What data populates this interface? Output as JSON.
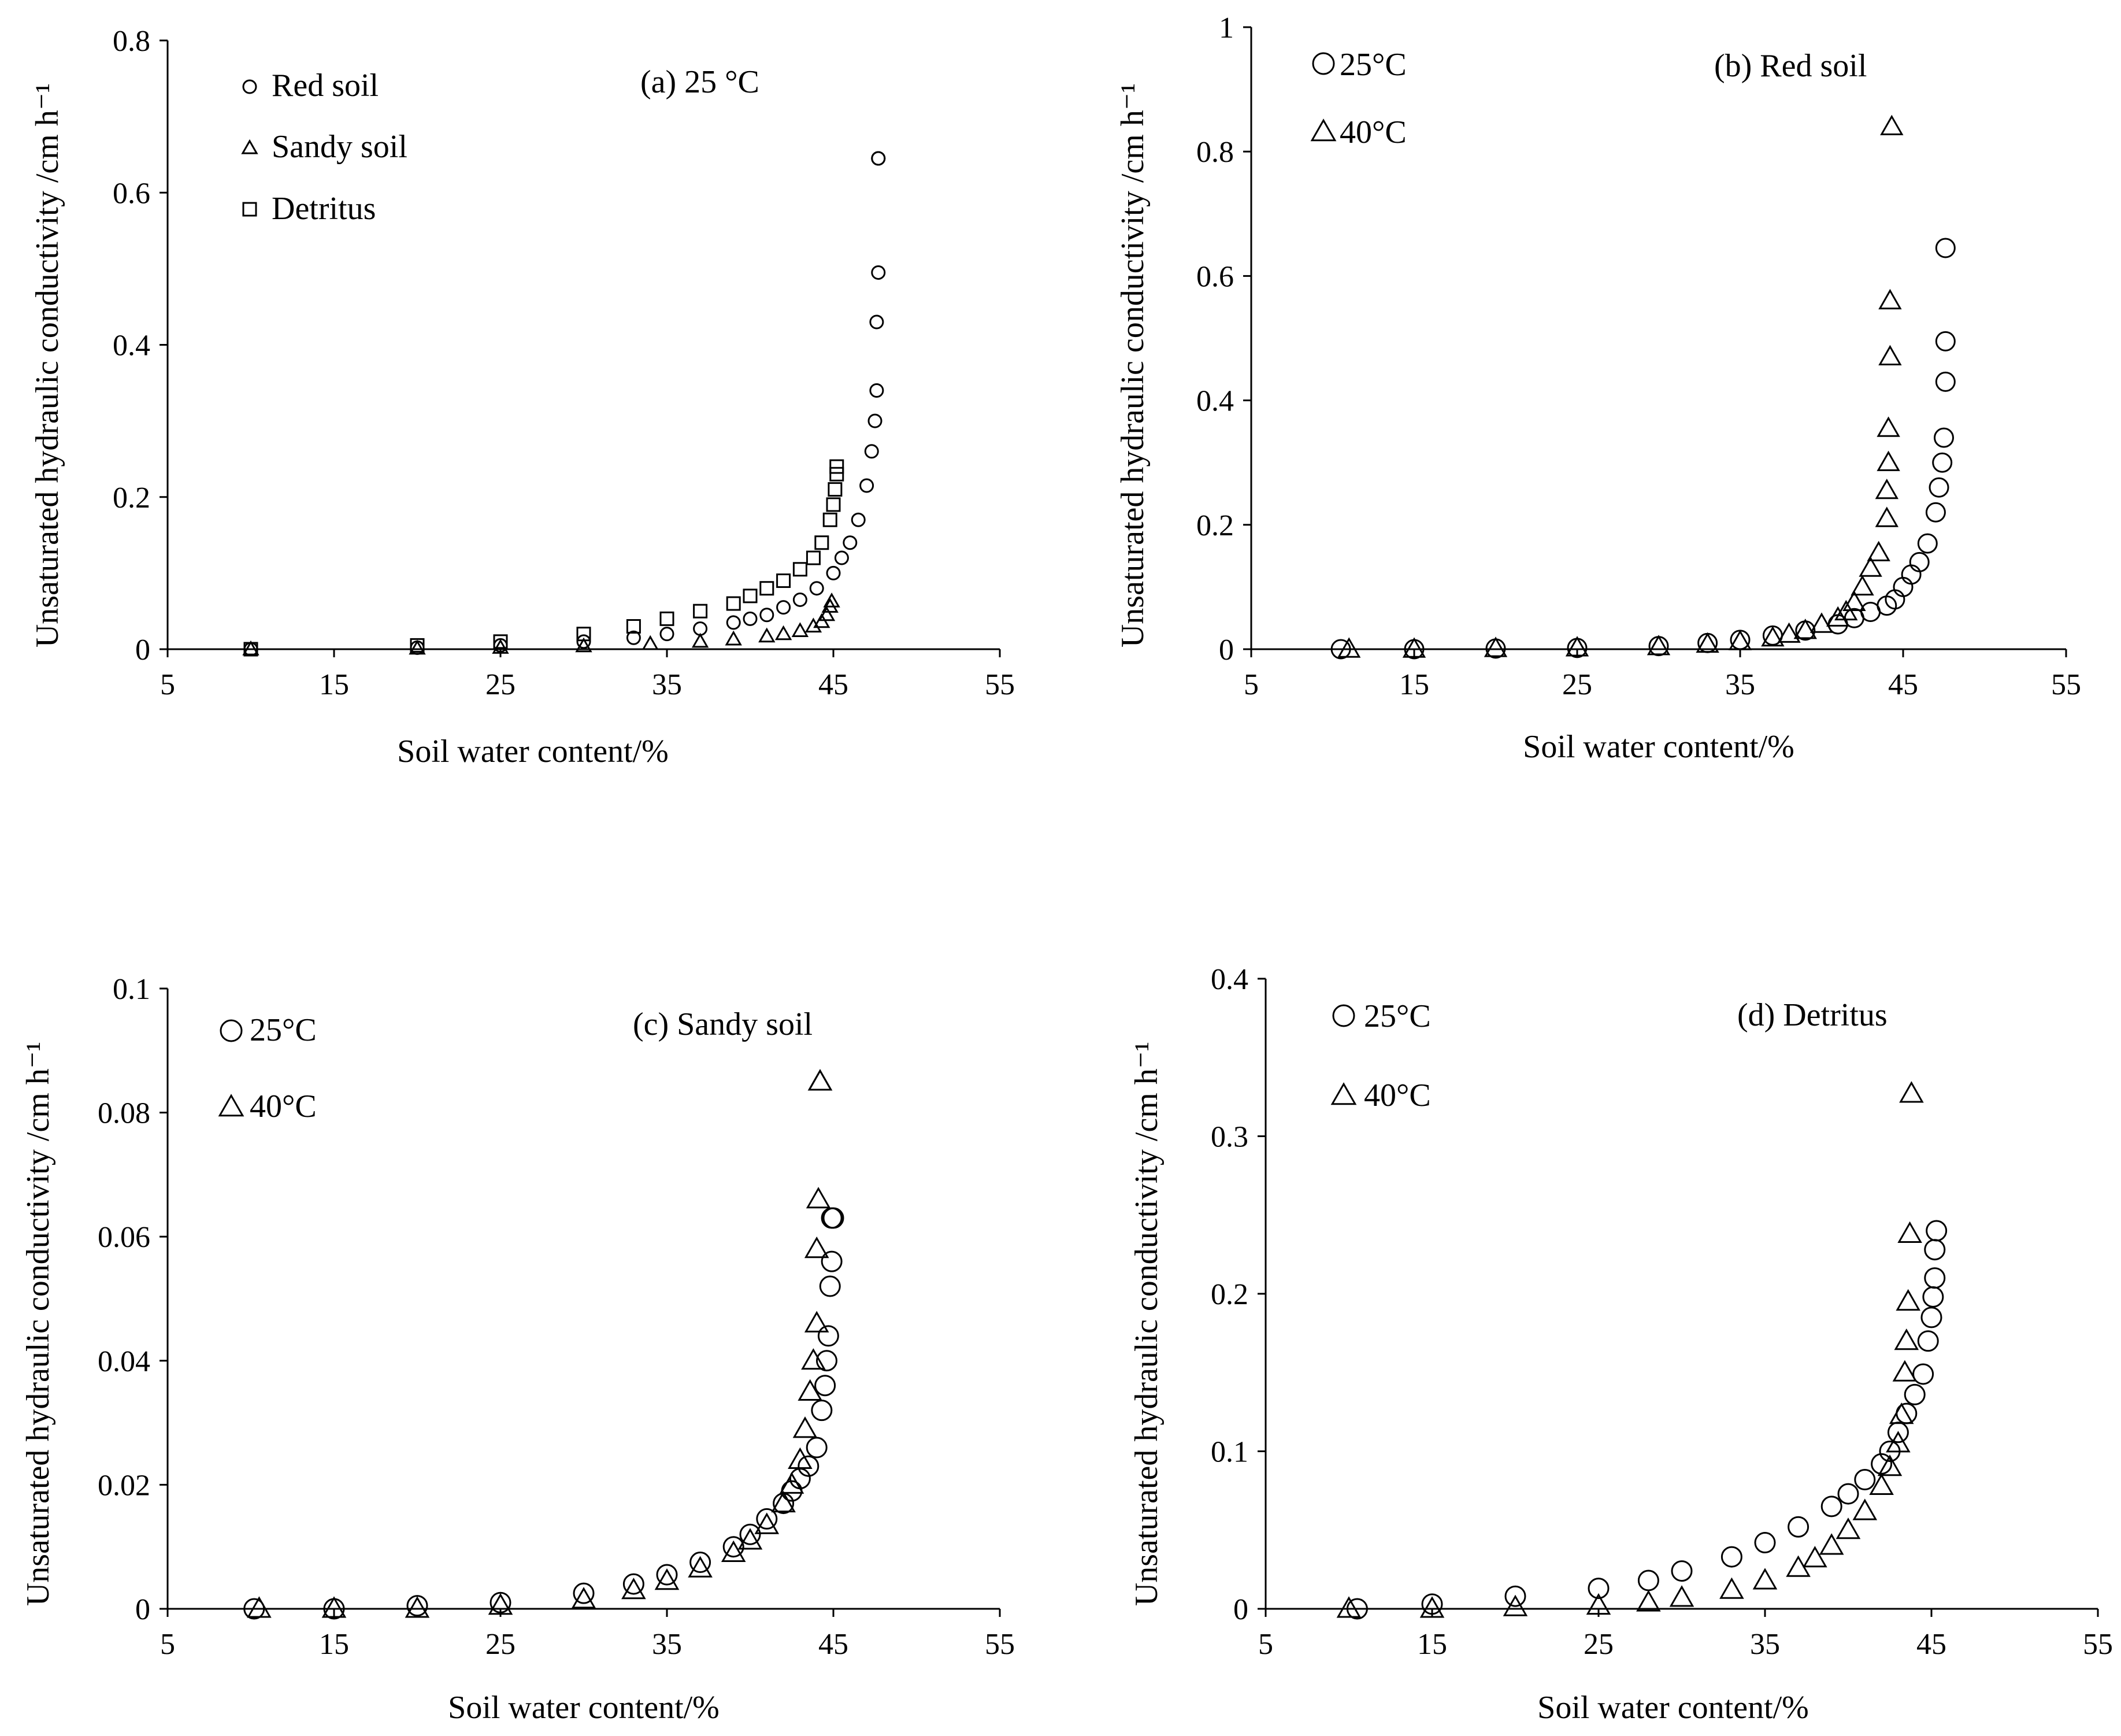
{
  "chart_data": [
    {
      "type": "scatter",
      "panel": "a",
      "title": "(a) 25 °C",
      "xlabel": "Soil water content/%",
      "ylabel": "Unsaturated hydraulic conductivity /cm h⁻¹",
      "xlim": [
        5,
        55
      ],
      "ylim": [
        0,
        0.8
      ],
      "x_ticks": [
        "5",
        "15",
        "25",
        "35",
        "45",
        "55"
      ],
      "y_ticks": [
        "0",
        "0.2",
        "0.4",
        "0.6",
        "0.8"
      ],
      "legend_position": "top-left",
      "series": [
        {
          "name": "Red soil",
          "marker": "circle",
          "x": [
            10,
            20,
            25,
            30,
            33,
            35,
            37,
            39,
            40,
            41,
            42,
            43,
            44,
            45,
            45.5,
            46,
            46.5,
            47,
            47.3,
            47.5,
            47.6,
            47.6,
            47.7,
            47.7,
            47.7
          ],
          "y": [
            0,
            0.002,
            0.005,
            0.01,
            0.015,
            0.02,
            0.027,
            0.035,
            0.04,
            0.045,
            0.055,
            0.065,
            0.08,
            0.1,
            0.12,
            0.14,
            0.17,
            0.215,
            0.26,
            0.3,
            0.34,
            0.43,
            0.495,
            0.645,
            0.645
          ]
        },
        {
          "name": "Sandy soil",
          "marker": "triangle",
          "x": [
            10,
            20,
            25,
            30,
            34,
            37,
            39,
            41,
            42,
            43,
            43.8,
            44.3,
            44.6,
            44.8,
            44.9
          ],
          "y": [
            0,
            0.001,
            0.002,
            0.004,
            0.007,
            0.01,
            0.013,
            0.017,
            0.02,
            0.024,
            0.03,
            0.036,
            0.045,
            0.056,
            0.063
          ]
        },
        {
          "name": "Detritus",
          "marker": "square",
          "x": [
            10,
            20,
            25,
            30,
            33,
            35,
            37,
            39,
            40,
            41,
            42,
            43,
            43.8,
            44.3,
            44.8,
            45,
            45.1,
            45.2,
            45.2
          ],
          "y": [
            0,
            0.005,
            0.01,
            0.02,
            0.03,
            0.04,
            0.05,
            0.06,
            0.07,
            0.08,
            0.09,
            0.105,
            0.12,
            0.14,
            0.17,
            0.19,
            0.21,
            0.23,
            0.24
          ]
        }
      ]
    },
    {
      "type": "scatter",
      "panel": "b",
      "title": "(b) Red soil",
      "xlabel": "Soil water content/%",
      "ylabel": "Unsaturated hydraulic conductivity /cm h⁻¹",
      "xlim": [
        5,
        55
      ],
      "ylim": [
        0,
        1
      ],
      "x_ticks": [
        "5",
        "15",
        "25",
        "35",
        "45",
        "55"
      ],
      "y_ticks": [
        "0",
        "0.2",
        "0.4",
        "0.6",
        "0.8",
        "1"
      ],
      "legend_position": "top-left",
      "series": [
        {
          "name": "25°C",
          "marker": "circle",
          "x": [
            10.5,
            15,
            20,
            25,
            30,
            33,
            35,
            37,
            39,
            41,
            42,
            43,
            44,
            44.5,
            45,
            45.5,
            46,
            46.5,
            47,
            47.2,
            47.4,
            47.5,
            47.6,
            47.6,
            47.6
          ],
          "y": [
            0,
            0,
            0.001,
            0.002,
            0.005,
            0.01,
            0.015,
            0.022,
            0.03,
            0.04,
            0.05,
            0.06,
            0.07,
            0.08,
            0.1,
            0.12,
            0.14,
            0.17,
            0.22,
            0.26,
            0.3,
            0.34,
            0.43,
            0.495,
            0.645
          ]
        },
        {
          "name": "40°C",
          "marker": "triangle",
          "x": [
            11,
            15,
            20,
            25,
            30,
            33,
            35,
            37,
            38,
            39,
            40,
            41,
            41.5,
            42,
            42.5,
            43,
            43.5,
            44,
            44,
            44.1,
            44.1,
            44.2,
            44.2,
            44.3
          ],
          "y": [
            0,
            0,
            0.001,
            0.002,
            0.004,
            0.008,
            0.012,
            0.018,
            0.024,
            0.03,
            0.04,
            0.05,
            0.06,
            0.075,
            0.1,
            0.13,
            0.155,
            0.21,
            0.255,
            0.3,
            0.355,
            0.47,
            0.56,
            0.84
          ]
        }
      ]
    },
    {
      "type": "scatter",
      "panel": "c",
      "title": "(c) Sandy soil",
      "xlabel": "Soil water content/%",
      "ylabel": "Unsaturated hydraulic conductivity /cm h⁻¹",
      "xlim": [
        5,
        55
      ],
      "ylim": [
        0,
        0.1
      ],
      "x_ticks": [
        "5",
        "15",
        "25",
        "35",
        "45",
        "55"
      ],
      "y_ticks": [
        "0",
        "0.02",
        "0.04",
        "0.06",
        "0.08",
        "0.1"
      ],
      "legend_position": "top-left",
      "series": [
        {
          "name": "25°C",
          "marker": "circle",
          "x": [
            10.2,
            15,
            20,
            25,
            30,
            33,
            35,
            37,
            39,
            40,
            41,
            42,
            42.5,
            43,
            43.5,
            44,
            44.3,
            44.5,
            44.6,
            44.7,
            44.8,
            44.9,
            44.9,
            45
          ],
          "y": [
            0,
            0,
            0.0005,
            0.001,
            0.0025,
            0.004,
            0.0055,
            0.0075,
            0.01,
            0.012,
            0.0145,
            0.017,
            0.019,
            0.021,
            0.023,
            0.026,
            0.032,
            0.036,
            0.04,
            0.044,
            0.052,
            0.056,
            0.063,
            0.063
          ]
        },
        {
          "name": "40°C",
          "marker": "triangle",
          "x": [
            10.5,
            15,
            20,
            25,
            30,
            33,
            35,
            37,
            39,
            40,
            41,
            42,
            42.5,
            43,
            43.3,
            43.6,
            43.8,
            44,
            44,
            44.1,
            44.2,
            44.2
          ],
          "y": [
            0,
            0,
            0,
            0.0005,
            0.0015,
            0.003,
            0.0045,
            0.0065,
            0.009,
            0.011,
            0.0135,
            0.017,
            0.02,
            0.024,
            0.029,
            0.035,
            0.04,
            0.046,
            0.058,
            0.066,
            0.085,
            0.085
          ]
        }
      ]
    },
    {
      "type": "scatter",
      "panel": "d",
      "title": "(d) Detritus",
      "xlabel": "Soil water content/%",
      "ylabel": "Unsaturated hydraulic conductivity /cm h⁻¹",
      "xlim": [
        5,
        55
      ],
      "ylim": [
        0,
        0.4
      ],
      "x_ticks": [
        "5",
        "15",
        "25",
        "35",
        "45",
        "55"
      ],
      "y_ticks": [
        "0",
        "0.1",
        "0.2",
        "0.3",
        "0.4"
      ],
      "legend_position": "top-left",
      "series": [
        {
          "name": "25°C",
          "marker": "circle",
          "x": [
            10.5,
            15,
            20,
            25,
            28,
            30,
            33,
            35,
            37,
            39,
            40,
            41,
            42,
            42.5,
            43,
            43.5,
            44,
            44.5,
            44.8,
            45,
            45.1,
            45.2,
            45.2,
            45.3
          ],
          "y": [
            0,
            0.003,
            0.008,
            0.013,
            0.018,
            0.024,
            0.033,
            0.042,
            0.052,
            0.065,
            0.073,
            0.082,
            0.092,
            0.1,
            0.112,
            0.124,
            0.136,
            0.149,
            0.17,
            0.185,
            0.198,
            0.21,
            0.228,
            0.24
          ]
        },
        {
          "name": "40°C",
          "marker": "triangle",
          "x": [
            10,
            15,
            20,
            25,
            28,
            30,
            33,
            35,
            37,
            38,
            39,
            40,
            41,
            42,
            42.5,
            43,
            43.2,
            43.4,
            43.5,
            43.6,
            43.7,
            43.8
          ],
          "y": [
            0,
            0,
            0.001,
            0.002,
            0.004,
            0.007,
            0.012,
            0.018,
            0.026,
            0.032,
            0.04,
            0.05,
            0.062,
            0.078,
            0.09,
            0.105,
            0.123,
            0.15,
            0.17,
            0.195,
            0.238,
            0.327
          ]
        }
      ]
    }
  ]
}
